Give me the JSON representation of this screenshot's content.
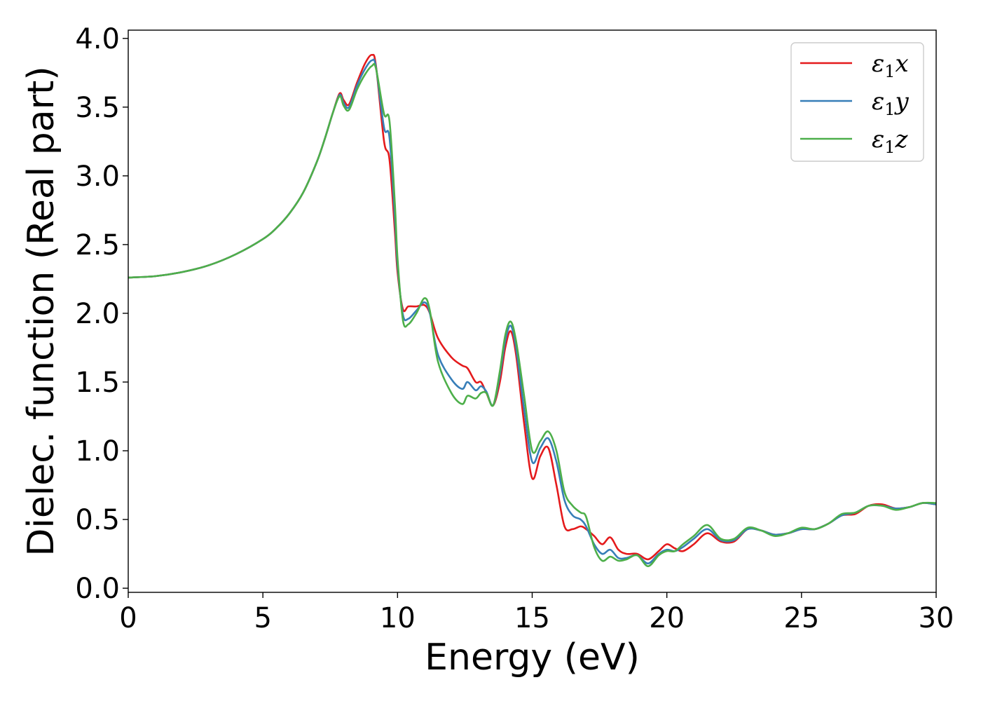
{
  "chart_data": {
    "type": "line",
    "title": "",
    "xlabel": "Energy (eV)",
    "ylabel": "Dielec. function (Real part)",
    "xlim": [
      0,
      30
    ],
    "ylim": [
      -0.03,
      4.06
    ],
    "xticks": [
      0,
      5,
      10,
      15,
      20,
      25,
      30
    ],
    "xtick_labels": [
      "0",
      "5",
      "10",
      "15",
      "20",
      "25",
      "30"
    ],
    "yticks": [
      0.0,
      0.5,
      1.0,
      1.5,
      2.0,
      2.5,
      3.0,
      3.5,
      4.0
    ],
    "ytick_labels": [
      "0.0",
      "0.5",
      "1.0",
      "1.5",
      "2.0",
      "2.5",
      "3.0",
      "3.5",
      "4.0"
    ],
    "grid": false,
    "legend_position": "top-right",
    "series": [
      {
        "name": "ε1x",
        "symbol": "ε",
        "subscript": "1",
        "axis": "x",
        "color": "#e41a1c",
        "x": [
          0,
          1,
          2,
          3,
          4,
          5,
          5.5,
          6,
          6.5,
          7,
          7.3,
          7.6,
          7.85,
          8.0,
          8.2,
          8.5,
          8.8,
          9.05,
          9.2,
          9.5,
          9.7,
          9.9,
          10.0,
          10.2,
          10.4,
          10.7,
          11.0,
          11.2,
          11.5,
          12.0,
          12.4,
          12.6,
          12.9,
          13.1,
          13.3,
          13.55,
          13.8,
          14.0,
          14.2,
          14.4,
          14.7,
          15.0,
          15.3,
          15.6,
          15.9,
          16.2,
          16.5,
          16.8,
          17.0,
          17.3,
          17.6,
          17.9,
          18.2,
          18.5,
          18.9,
          19.3,
          19.7,
          20.0,
          20.3,
          20.6,
          21.0,
          21.5,
          22.0,
          22.5,
          23.0,
          23.5,
          24.0,
          24.5,
          25.0,
          25.5,
          26.0,
          26.5,
          27.0,
          27.5,
          28.0,
          28.5,
          29.0,
          29.5,
          30.0
        ],
        "y": [
          2.26,
          2.27,
          2.3,
          2.35,
          2.43,
          2.54,
          2.62,
          2.73,
          2.88,
          3.1,
          3.27,
          3.46,
          3.6,
          3.55,
          3.52,
          3.68,
          3.82,
          3.88,
          3.8,
          3.25,
          3.12,
          2.6,
          2.3,
          2.03,
          2.05,
          2.05,
          2.06,
          2.0,
          1.82,
          1.68,
          1.62,
          1.6,
          1.5,
          1.5,
          1.42,
          1.33,
          1.5,
          1.75,
          1.87,
          1.7,
          1.2,
          0.8,
          0.96,
          1.02,
          0.75,
          0.45,
          0.43,
          0.45,
          0.43,
          0.38,
          0.32,
          0.37,
          0.28,
          0.25,
          0.25,
          0.21,
          0.27,
          0.32,
          0.29,
          0.27,
          0.32,
          0.4,
          0.34,
          0.34,
          0.43,
          0.42,
          0.39,
          0.4,
          0.43,
          0.43,
          0.47,
          0.53,
          0.54,
          0.6,
          0.61,
          0.58,
          0.59,
          0.62,
          0.61
        ]
      },
      {
        "name": "ε1y",
        "symbol": "ε",
        "subscript": "1",
        "axis": "y",
        "color": "#377eb8",
        "x": [
          0,
          1,
          2,
          3,
          4,
          5,
          5.5,
          6,
          6.5,
          7,
          7.3,
          7.6,
          7.85,
          8.0,
          8.2,
          8.5,
          8.8,
          9.05,
          9.2,
          9.5,
          9.7,
          9.9,
          10.0,
          10.2,
          10.4,
          10.7,
          11.0,
          11.2,
          11.5,
          12.0,
          12.4,
          12.6,
          12.9,
          13.1,
          13.3,
          13.55,
          13.8,
          14.0,
          14.2,
          14.4,
          14.7,
          15.0,
          15.3,
          15.6,
          15.9,
          16.2,
          16.5,
          16.8,
          17.0,
          17.3,
          17.6,
          17.9,
          18.2,
          18.5,
          18.9,
          19.3,
          19.7,
          20.0,
          20.3,
          20.6,
          21.0,
          21.5,
          22.0,
          22.5,
          23.0,
          23.5,
          24.0,
          24.5,
          25.0,
          25.5,
          26.0,
          26.5,
          27.0,
          27.5,
          28.0,
          28.5,
          29.0,
          29.5,
          30.0
        ],
        "y": [
          2.26,
          2.27,
          2.3,
          2.35,
          2.43,
          2.54,
          2.62,
          2.73,
          2.88,
          3.1,
          3.27,
          3.46,
          3.59,
          3.53,
          3.5,
          3.66,
          3.78,
          3.84,
          3.79,
          3.35,
          3.28,
          2.7,
          2.35,
          1.99,
          1.96,
          2.02,
          2.08,
          2.0,
          1.7,
          1.52,
          1.45,
          1.5,
          1.44,
          1.47,
          1.43,
          1.33,
          1.55,
          1.8,
          1.91,
          1.75,
          1.3,
          0.92,
          1.02,
          1.09,
          0.92,
          0.64,
          0.53,
          0.5,
          0.45,
          0.32,
          0.25,
          0.28,
          0.22,
          0.22,
          0.24,
          0.18,
          0.25,
          0.28,
          0.27,
          0.3,
          0.36,
          0.43,
          0.35,
          0.35,
          0.43,
          0.42,
          0.39,
          0.4,
          0.43,
          0.43,
          0.47,
          0.53,
          0.55,
          0.6,
          0.6,
          0.58,
          0.59,
          0.62,
          0.61
        ]
      },
      {
        "name": "ε1z",
        "symbol": "ε",
        "subscript": "1",
        "axis": "z",
        "color": "#4daf4a",
        "x": [
          0,
          1,
          2,
          3,
          4,
          5,
          5.5,
          6,
          6.5,
          7,
          7.3,
          7.6,
          7.85,
          8.0,
          8.2,
          8.5,
          8.8,
          9.05,
          9.2,
          9.5,
          9.7,
          9.9,
          10.0,
          10.2,
          10.4,
          10.7,
          11.0,
          11.2,
          11.5,
          12.0,
          12.4,
          12.6,
          12.9,
          13.1,
          13.3,
          13.55,
          13.8,
          14.0,
          14.2,
          14.4,
          14.7,
          15.0,
          15.3,
          15.6,
          15.9,
          16.2,
          16.5,
          16.8,
          17.0,
          17.3,
          17.6,
          17.9,
          18.2,
          18.5,
          18.9,
          19.3,
          19.7,
          20.0,
          20.3,
          20.6,
          21.0,
          21.5,
          22.0,
          22.5,
          23.0,
          23.5,
          24.0,
          24.5,
          25.0,
          25.5,
          26.0,
          26.5,
          27.0,
          27.5,
          28.0,
          28.5,
          29.0,
          29.5,
          30.0
        ],
        "y": [
          2.26,
          2.27,
          2.3,
          2.35,
          2.43,
          2.54,
          2.62,
          2.73,
          2.88,
          3.1,
          3.27,
          3.46,
          3.58,
          3.51,
          3.48,
          3.63,
          3.74,
          3.8,
          3.78,
          3.45,
          3.4,
          2.8,
          2.4,
          1.95,
          1.92,
          2.0,
          2.11,
          2.02,
          1.65,
          1.42,
          1.34,
          1.4,
          1.38,
          1.42,
          1.42,
          1.33,
          1.58,
          1.84,
          1.94,
          1.8,
          1.4,
          1.0,
          1.07,
          1.14,
          1.0,
          0.7,
          0.6,
          0.55,
          0.52,
          0.3,
          0.2,
          0.23,
          0.2,
          0.21,
          0.24,
          0.16,
          0.24,
          0.27,
          0.27,
          0.32,
          0.38,
          0.46,
          0.36,
          0.36,
          0.44,
          0.42,
          0.38,
          0.4,
          0.44,
          0.43,
          0.47,
          0.54,
          0.55,
          0.6,
          0.6,
          0.57,
          0.59,
          0.62,
          0.62
        ]
      }
    ]
  }
}
